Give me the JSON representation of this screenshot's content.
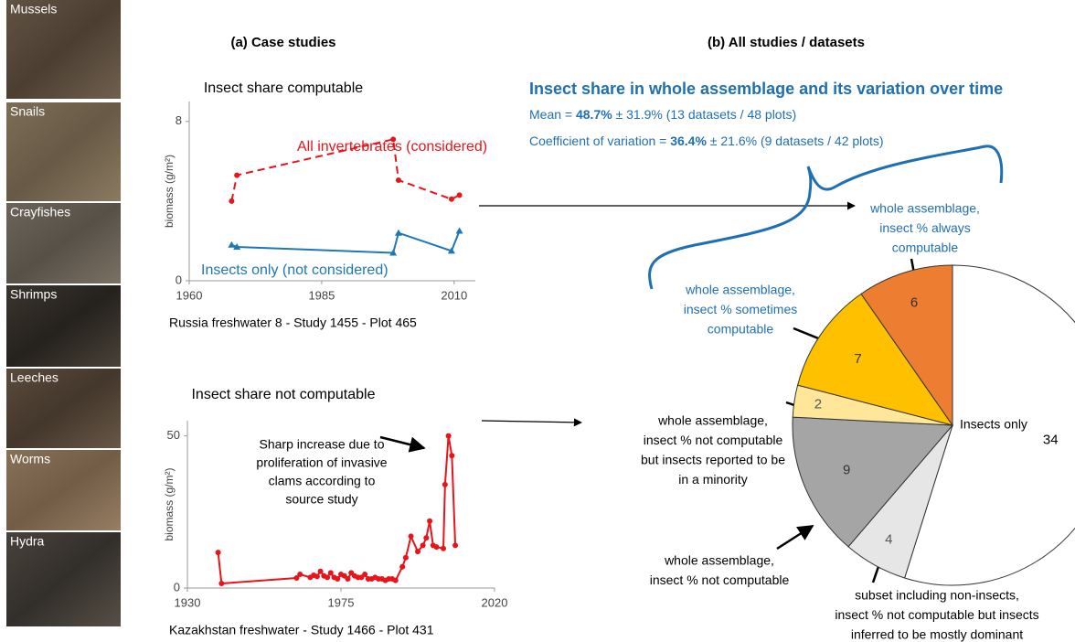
{
  "photos": [
    "Mussels",
    "Snails",
    "Crayfishes",
    "Shrimps",
    "Leeches",
    "Worms",
    "Hydra"
  ],
  "panels": [
    "(a) Case studies",
    "(b) All studies / datasets"
  ],
  "summary": {
    "title": "Insect share in whole assemblage and its variation over time",
    "lines": [
      [
        "Mean = ",
        "48.7%",
        " ± 31.9% (13 datasets / 48 plots)"
      ],
      [
        "Coefficient of variation = ",
        "36.4%",
        " ± 21.6% (9 datasets / 42 plots)"
      ]
    ]
  },
  "chart_data": [
    {
      "type": "line",
      "title": "Insect share computable",
      "ylabel": "biomass (g/m²)",
      "caption": "Russia freshwater 8 - Study 1455 - Plot 465",
      "x": [
        1968,
        1969,
        1998.5,
        1999.5,
        2009.5,
        2011
      ],
      "series": [
        {
          "name": "All invertebrates (considered)",
          "color": "#e8141c",
          "marker": "circle",
          "line_style": "dashed",
          "values": [
            4.0,
            5.3,
            7.1,
            5.05,
            4.1,
            4.3
          ]
        },
        {
          "name": "Insects only (not considered)",
          "color": "#1f77b4",
          "marker": "triangle",
          "line_style": "solid",
          "values": [
            1.8,
            1.7,
            1.4,
            2.4,
            1.5,
            2.5
          ]
        }
      ],
      "xlim": [
        1960,
        2014
      ],
      "xticks": [
        1960,
        1985,
        2010
      ],
      "ylim": [
        0,
        9
      ],
      "yticks": [
        0,
        8
      ]
    },
    {
      "type": "line",
      "title": "Insect share not computable",
      "ylabel": "biomass (g/m²)",
      "caption": "Kazakhstan freshwater - Study 1466 - Plot 431",
      "annotation": [
        "Sharp increase due to",
        "proliferation of invasive",
        "clams according to",
        "source study"
      ],
      "x": [
        1939,
        1940,
        1962,
        1963,
        1966,
        1967,
        1968,
        1969,
        1970,
        1971,
        1972,
        1973,
        1974,
        1975,
        1976,
        1977,
        1978,
        1979,
        1980,
        1981,
        1982,
        1983,
        1984,
        1985,
        1986,
        1987,
        1988,
        1989,
        1990,
        1991,
        1993,
        1994,
        1995.5,
        1997.5,
        1999,
        2000,
        2001,
        2002,
        2003,
        2005,
        2005.5,
        2006.5,
        2007.5,
        2008.5
      ],
      "series": [
        {
          "color": "#e8141c",
          "marker": "circle",
          "line_style": "solid",
          "values": [
            11.7,
            1.5,
            3.3,
            4.5,
            3.5,
            4.2,
            3.8,
            5.5,
            4.0,
            3.5,
            5.0,
            3.5,
            3.0,
            4.5,
            4.0,
            3.0,
            5.0,
            4.0,
            3.5,
            3.5,
            4.5,
            3.0,
            3.0,
            3.5,
            3.0,
            3.0,
            2.5,
            3.0,
            3.0,
            2.5,
            7,
            10,
            17,
            12,
            14,
            16.5,
            22,
            14,
            13.5,
            13,
            34,
            50,
            43.5,
            14
          ]
        }
      ],
      "xlim": [
        1930,
        2020
      ],
      "xticks": [
        1930,
        1975,
        2020
      ],
      "ylim": [
        0,
        55
      ],
      "yticks": [
        0,
        50
      ]
    },
    {
      "type": "pie",
      "categories": [
        [
          "Insects only"
        ],
        [
          "subset including non-insects,",
          "insect % not computable but insects",
          "inferred to be mostly dominant"
        ],
        [
          "whole assemblage,",
          "insect % not computable"
        ],
        [
          "whole assemblage,",
          "insect % not computable",
          "but insects reported to be",
          "in a minority"
        ],
        [
          "whole assemblage,",
          "insect % sometimes",
          "computable"
        ],
        [
          "whole assemblage,",
          "insect % always",
          "computable"
        ]
      ],
      "values": [
        34,
        4,
        9,
        2,
        7,
        6
      ],
      "colors": [
        "#ffffff",
        "#e7e6e6",
        "#a5a5a5",
        "#ffe699",
        "#ffc000",
        "#ed7d31"
      ],
      "label_colors": [
        "#000000",
        "#000000",
        "#000000",
        "#000000",
        "#1f6fb4",
        "#1f6fb4"
      ],
      "value_label_colors": [
        "#000000",
        "#555555",
        "#333333",
        "#555555",
        "#333333",
        "#333333"
      ]
    }
  ]
}
